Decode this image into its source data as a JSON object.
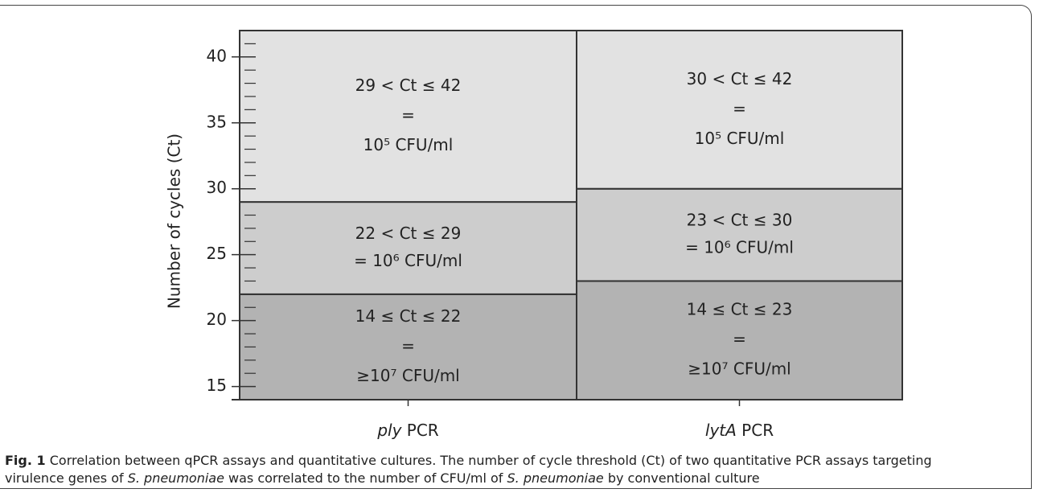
{
  "chart_data": {
    "type": "range-bar",
    "ylabel": "Number of cycles (Ct)",
    "ylim": [
      14,
      42
    ],
    "yticks": [
      15,
      20,
      25,
      30,
      35,
      40
    ],
    "minor_tick_interval": 1,
    "categories": [
      {
        "gene": "ply",
        "suffix": "PCR"
      },
      {
        "gene": "lytA",
        "suffix": "PCR"
      }
    ],
    "bars": [
      {
        "segments": [
          {
            "low": 14,
            "high": 22,
            "color": "#b3b3b3",
            "label": [
              "14 ≤ Ct  ≤ 22",
              "=",
              "≥10⁷ CFU/ml"
            ]
          },
          {
            "low": 22,
            "high": 29,
            "color": "#cdcdcd",
            "label": [
              "22 < Ct ≤ 29",
              "= 10⁶ CFU/ml"
            ]
          },
          {
            "low": 29,
            "high": 42,
            "color": "#e2e2e2",
            "label": [
              "29 < Ct ≤ 42",
              "=",
              "10⁵ CFU/ml"
            ]
          }
        ]
      },
      {
        "segments": [
          {
            "low": 14,
            "high": 23,
            "color": "#b3b3b3",
            "label": [
              "14 ≤ Ct ≤ 23",
              "=",
              "≥10⁷ CFU/ml"
            ]
          },
          {
            "low": 23,
            "high": 30,
            "color": "#cdcdcd",
            "label": [
              "23 < Ct ≤ 30",
              "= 10⁶ CFU/ml"
            ]
          },
          {
            "low": 30,
            "high": 42,
            "color": "#e2e2e2",
            "label": [
              "30 < Ct ≤ 42",
              "=",
              "10⁵ CFU/ml"
            ]
          }
        ]
      }
    ]
  },
  "caption": {
    "label": "Fig. 1",
    "parts": [
      {
        "text": " Correlation between qPCR assays and quantitative cultures. The number of cycle threshold (Ct) of two quantitative PCR assays targeting virulence genes of ",
        "italic": false
      },
      {
        "text": "S. pneumoniae",
        "italic": true
      },
      {
        "text": " was correlated to the number of CFU/ml of ",
        "italic": false
      },
      {
        "text": "S. pneumoniae",
        "italic": true
      },
      {
        "text": " by conventional culture",
        "italic": false
      }
    ]
  }
}
